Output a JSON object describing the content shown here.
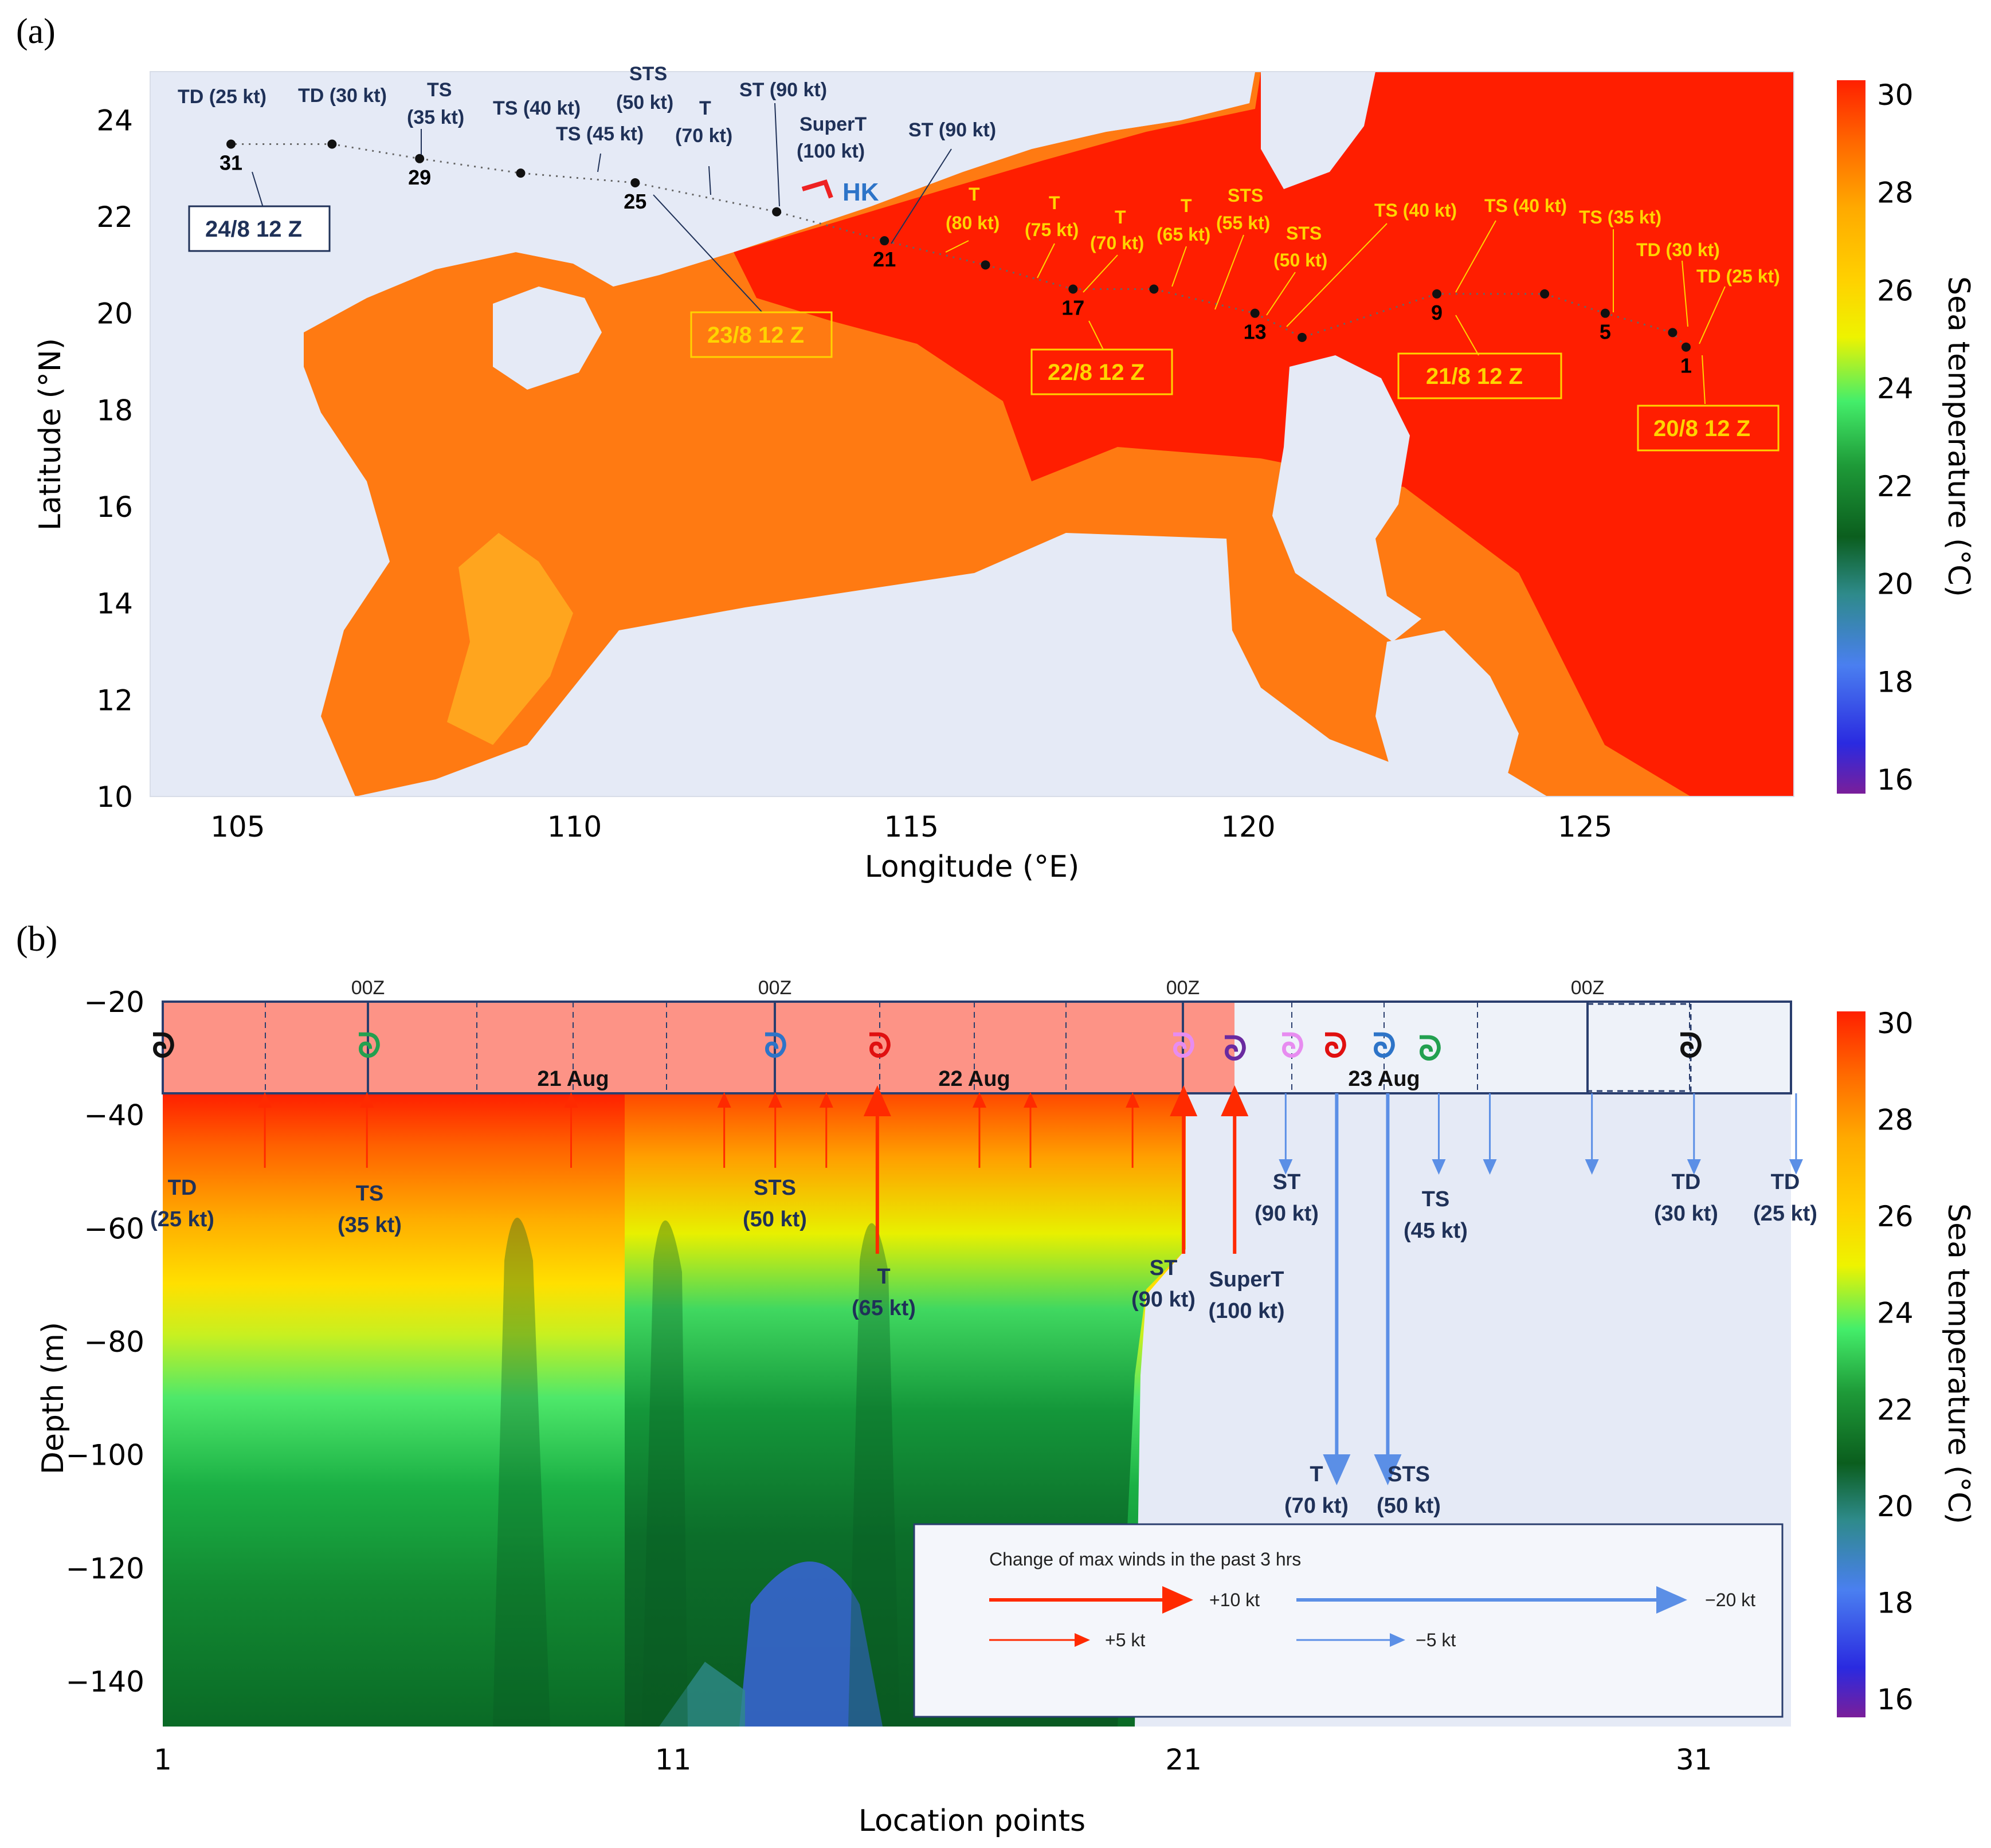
{
  "chart_data": [
    {
      "type": "heatmap",
      "panel_label": "(a)",
      "xlabel": "Longitude (°E)",
      "ylabel": "Latitude (°N)",
      "xlim": [
        103.7,
        128.1
      ],
      "ylim": [
        10,
        25
      ],
      "x_ticks": [
        "105",
        "110",
        "115",
        "120",
        "125"
      ],
      "y_ticks": [
        "10",
        "12",
        "14",
        "16",
        "18",
        "20",
        "22",
        "24"
      ],
      "colorbar": {
        "label": "Sea temperature (°C)",
        "ticks": [
          "16",
          "18",
          "20",
          "22",
          "24",
          "26",
          "28",
          "30"
        ],
        "range": [
          16,
          30
        ]
      },
      "track": [
        {
          "point": "1",
          "lon": 126.5,
          "lat": 19.3
        },
        {
          "point": "",
          "lon": 126.3,
          "lat": 19.6
        },
        {
          "point": "5",
          "lon": 125.3,
          "lat": 20.0
        },
        {
          "point": "",
          "lon": 124.4,
          "lat": 20.4
        },
        {
          "point": "9",
          "lon": 122.8,
          "lat": 20.4
        },
        {
          "point": "",
          "lon": 120.8,
          "lat": 19.5
        },
        {
          "point": "13",
          "lon": 120.1,
          "lat": 20.0
        },
        {
          "point": "",
          "lon": 118.6,
          "lat": 20.5
        },
        {
          "point": "17",
          "lon": 117.4,
          "lat": 20.5
        },
        {
          "point": "",
          "lon": 116.1,
          "lat": 21.0
        },
        {
          "point": "21",
          "lon": 114.6,
          "lat": 21.5
        },
        {
          "point": "",
          "lon": 113.0,
          "lat": 22.1
        },
        {
          "point": "25",
          "lon": 110.9,
          "lat": 22.7
        },
        {
          "point": "",
          "lon": 109.2,
          "lat": 22.9
        },
        {
          "point": "29",
          "lon": 107.7,
          "lat": 23.2
        },
        {
          "point": "",
          "lon": 106.4,
          "lat": 23.5
        },
        {
          "point": "31",
          "lon": 104.9,
          "lat": 23.5
        }
      ],
      "intensity_labels_navy": [
        "TD (25 kt)",
        "TD (30 kt)",
        "TS",
        "(35 kt)",
        "TS (40 kt)",
        "TS (45 kt)",
        "STS",
        "(50 kt)",
        "T",
        "(70 kt)",
        "ST (90 kt)",
        "SuperT",
        "(100 kt)",
        "ST (90 kt)"
      ],
      "intensity_labels_yellow": [
        "T",
        "(80 kt)",
        "T",
        "(75 kt)",
        "T",
        "(70 kt)",
        "T",
        "(65 kt)",
        "STS",
        "(55 kt)",
        "STS",
        "(50 kt)",
        "TS (40 kt)",
        "TS (40 kt)",
        "TS (35 kt)",
        "TD (30 kt)",
        "TD (25 kt)"
      ],
      "date_boxes": [
        "24/8 12 Z",
        "23/8 12 Z",
        "22/8 12 Z",
        "21/8 12 Z",
        "20/8 12 Z"
      ],
      "place_label": "HK"
    },
    {
      "type": "heatmap",
      "panel_label": "(b)",
      "xlabel": "Location points",
      "ylabel": "Depth (m)",
      "xlim": [
        1,
        32.9
      ],
      "ylim": [
        -148,
        -20
      ],
      "x_ticks": [
        "1",
        "11",
        "21",
        "31"
      ],
      "y_ticks": [
        "−20",
        "−40",
        "−60",
        "−80",
        "−100",
        "−120",
        "−140"
      ],
      "colorbar": {
        "label": "Sea temperature (°C)",
        "ticks": [
          "16",
          "18",
          "20",
          "22",
          "24",
          "26",
          "28",
          "30"
        ],
        "range": [
          16,
          30
        ]
      },
      "time_markers": [
        "00Z",
        "00Z",
        "00Z",
        "00Z"
      ],
      "day_labels": [
        "21 Aug",
        "22 Aug",
        "23 Aug"
      ],
      "intensity_labels": [
        "TD",
        "(25 kt)",
        "TS",
        "(35 kt)",
        "STS",
        "(50 kt)",
        "T",
        "(65 kt)",
        "ST",
        "(90 kt)",
        "SuperT",
        "(100 kt)",
        "ST",
        "(90 kt)",
        "T",
        "(70 kt)",
        "STS",
        "(50 kt)",
        "TS",
        "(45 kt)",
        "TD",
        "(30 kt)",
        "TD",
        "(25 kt)"
      ],
      "wind_change_arrows": [
        {
          "x": 3,
          "change_kt": 5
        },
        {
          "x": 5,
          "change_kt": 5
        },
        {
          "x": 9,
          "change_kt": 5
        },
        {
          "x": 12,
          "change_kt": 5
        },
        {
          "x": 13,
          "change_kt": 5
        },
        {
          "x": 14,
          "change_kt": 5
        },
        {
          "x": 15,
          "change_kt": 10
        },
        {
          "x": 17,
          "change_kt": 5
        },
        {
          "x": 18,
          "change_kt": 5
        },
        {
          "x": 20,
          "change_kt": 5
        },
        {
          "x": 21,
          "change_kt": 10
        },
        {
          "x": 22,
          "change_kt": 10
        },
        {
          "x": 23,
          "change_kt": -5
        },
        {
          "x": 24,
          "change_kt": -20
        },
        {
          "x": 25,
          "change_kt": -20
        },
        {
          "x": 26,
          "change_kt": -5
        },
        {
          "x": 27,
          "change_kt": -5
        },
        {
          "x": 29,
          "change_kt": -5
        },
        {
          "x": 31,
          "change_kt": -5
        },
        {
          "x": 33,
          "change_kt": -5
        }
      ],
      "legend": {
        "title": "Change of max winds in the past 3 hrs",
        "items": [
          "+10 kt",
          "−20 kt",
          "+5 kt",
          "−5 kt"
        ]
      },
      "colors": {
        "warm": "#ff2a00",
        "cool": "#5b8fe6"
      }
    }
  ]
}
